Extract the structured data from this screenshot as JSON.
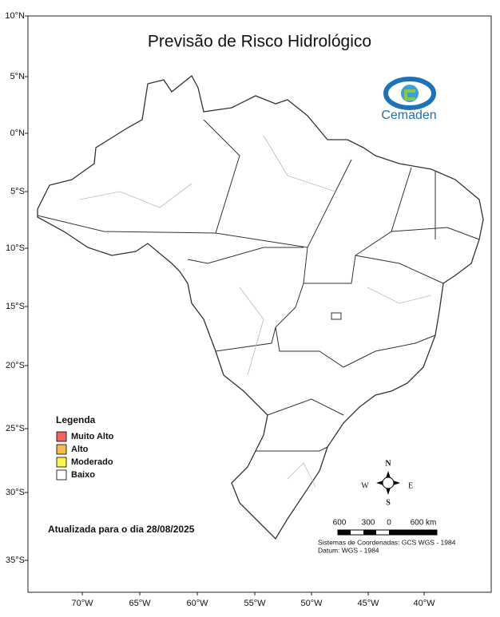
{
  "header": {
    "title": "Previsão de Risco Hidrológico"
  },
  "logo": {
    "text": "Cemaden"
  },
  "axes": {
    "latitude": [
      "10°N",
      "5°N",
      "0°N",
      "5°S",
      "10°S",
      "15°S",
      "20°S",
      "25°S",
      "30°S",
      "35°S"
    ],
    "longitude": [
      "70°W",
      "65°W",
      "60°W",
      "55°W",
      "50°W",
      "45°W",
      "40°W"
    ]
  },
  "legend": {
    "title": "Legenda",
    "items": [
      {
        "label": "Muito Alto",
        "color": "#f26262"
      },
      {
        "label": "Alto",
        "color": "#f6b94c"
      },
      {
        "label": "Moderado",
        "color": "#f8f64e"
      },
      {
        "label": "Baixo",
        "color": "#ffffff"
      }
    ]
  },
  "update_note": "Atualizada para o dia 28/08/2025",
  "compass": {
    "n": "N",
    "s": "S",
    "e": "E",
    "w": "W"
  },
  "scale_bar": {
    "labels": [
      "600",
      "300",
      "0",
      "600 km"
    ]
  },
  "credits": [
    "Sistemas de Coordenadas: GCS WGS - 1984",
    "Datum: WGS - 1984"
  ]
}
